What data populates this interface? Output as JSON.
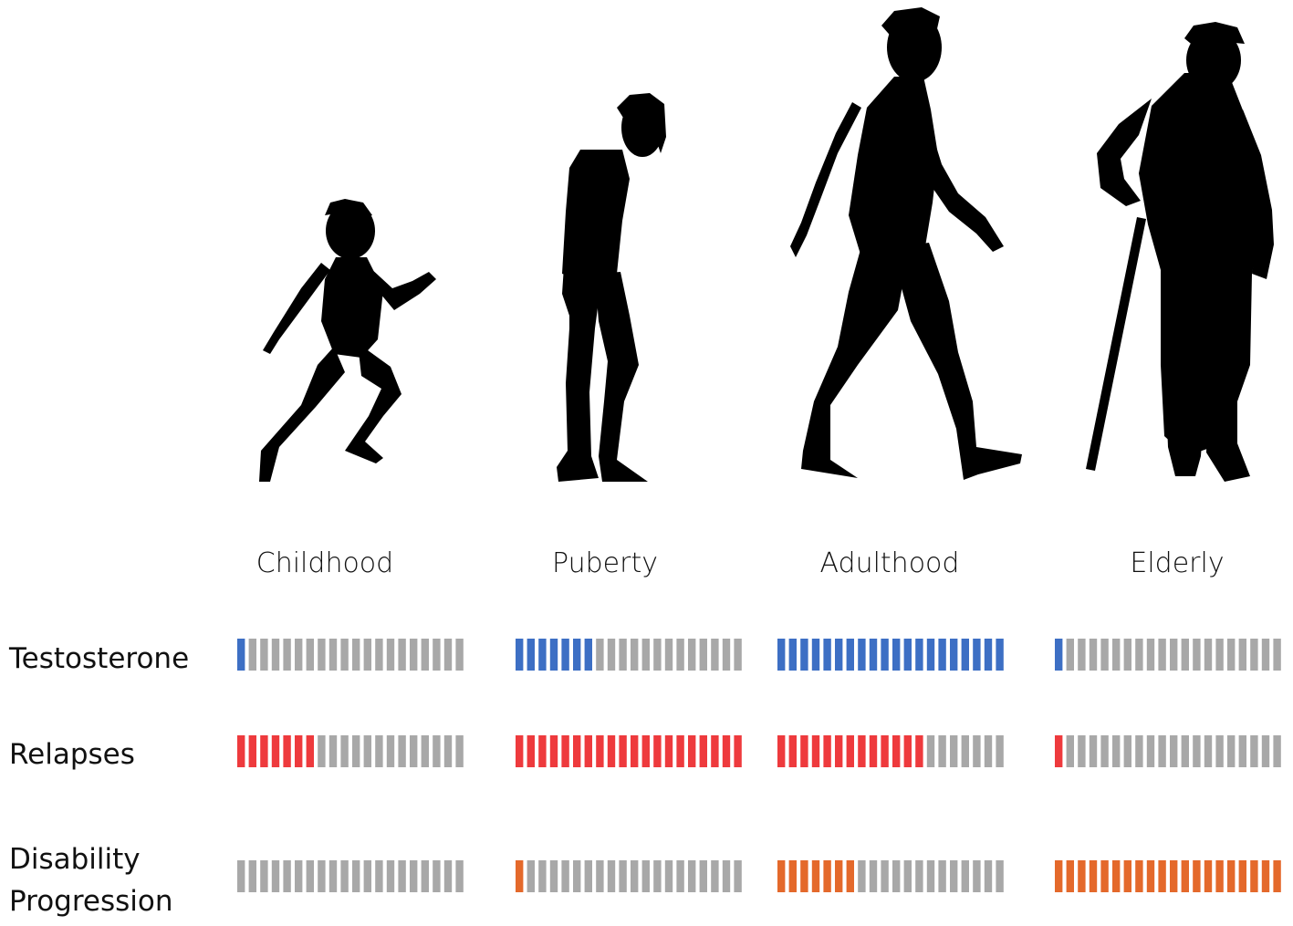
{
  "stages": [
    {
      "label": "Childhood",
      "figure_icon": "running-child-silhouette-icon"
    },
    {
      "label": "Puberty",
      "figure_icon": "standing-adolescent-silhouette-icon"
    },
    {
      "label": "Adulthood",
      "figure_icon": "walking-adult-silhouette-icon"
    },
    {
      "label": "Elderly",
      "figure_icon": "elderly-with-cane-silhouette-icon"
    }
  ],
  "segments_per_bar": 20,
  "empty_color": "#a8a8a8",
  "rows": [
    {
      "label_lines": [
        "Testosterone"
      ],
      "color": "#3d6fc4",
      "levels": [
        1,
        7,
        20,
        1
      ]
    },
    {
      "label_lines": [
        "Relapses"
      ],
      "color": "#ee3a3d",
      "levels": [
        7,
        20,
        13,
        1
      ]
    },
    {
      "label_lines": [
        "Disability",
        "Progression"
      ],
      "color": "#e4692b",
      "levels": [
        0,
        1,
        7,
        20
      ]
    }
  ]
}
